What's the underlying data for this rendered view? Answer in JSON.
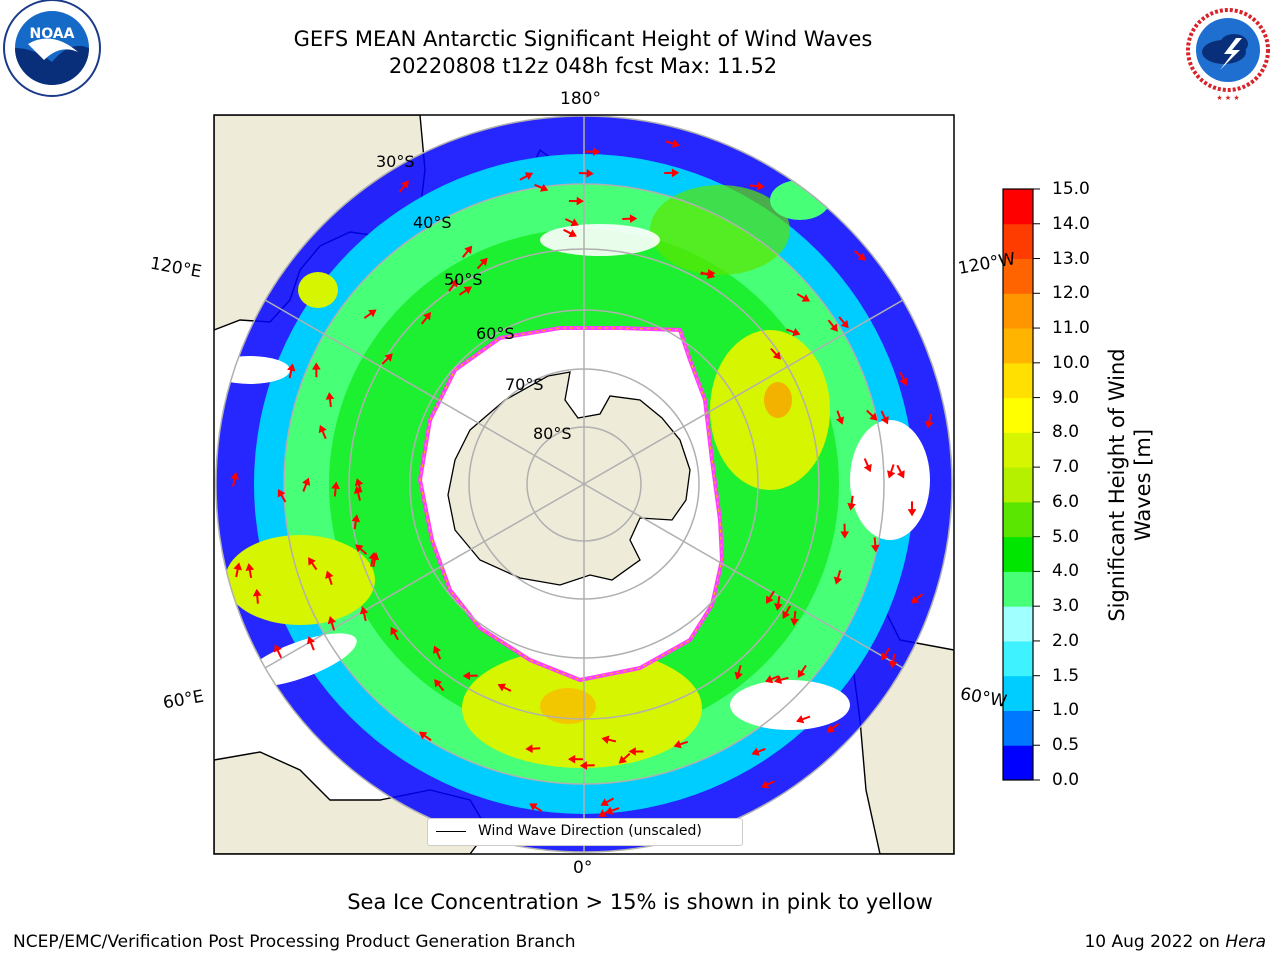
{
  "title": {
    "line1": "GEFS MEAN Antarctic Significant Height of Wind Waves",
    "line2": "20220808 t12z 048h fcst   Max: 11.52"
  },
  "logos": {
    "left": "NOAA",
    "right": "NATIONAL WEATHER SERVICE"
  },
  "longitude_labels": {
    "top": "180°",
    "bottom": "0°",
    "upper_left": "120°E",
    "upper_right": "120°W",
    "lower_left": "60°E",
    "lower_right": "60°W"
  },
  "latitude_labels": [
    "30°S",
    "40°S",
    "50°S",
    "60°S",
    "70°S",
    "80°S"
  ],
  "legend": {
    "label": "Wind Wave Direction (unscaled)"
  },
  "colorbar": {
    "label": "Significant Height of Wind Waves [m]",
    "ticks": [
      "15.0",
      "14.0",
      "13.0",
      "12.0",
      "11.0",
      "10.0",
      "9.0",
      "8.0",
      "7.0",
      "6.0",
      "5.0",
      "4.0",
      "3.0",
      "2.0",
      "1.5",
      "1.0",
      "0.5",
      "0.0"
    ],
    "colors": [
      "#0000ff",
      "#0078ff",
      "#00cdff",
      "#3ff2ff",
      "#a0ffff",
      "#48ff78",
      "#00e600",
      "#5ae600",
      "#b4f000",
      "#d6f500",
      "#ffff00",
      "#ffe000",
      "#ffb400",
      "#ff9600",
      "#ff6400",
      "#ff3c00",
      "#ff0000"
    ]
  },
  "note": "Sea Ice Concentration > 15% is shown in pink to yellow",
  "footer": {
    "left": "NCEP/EMC/Verification Post Processing Product Generation Branch",
    "right_date": "10 Aug 2022 on",
    "right_host": "Hera"
  },
  "map_colors": {
    "land": "#efebd9",
    "ocean": "#ffffff",
    "grid": "#b0b0b0",
    "arrow": "#ff0000",
    "ice_edge": "#ff40ff"
  }
}
